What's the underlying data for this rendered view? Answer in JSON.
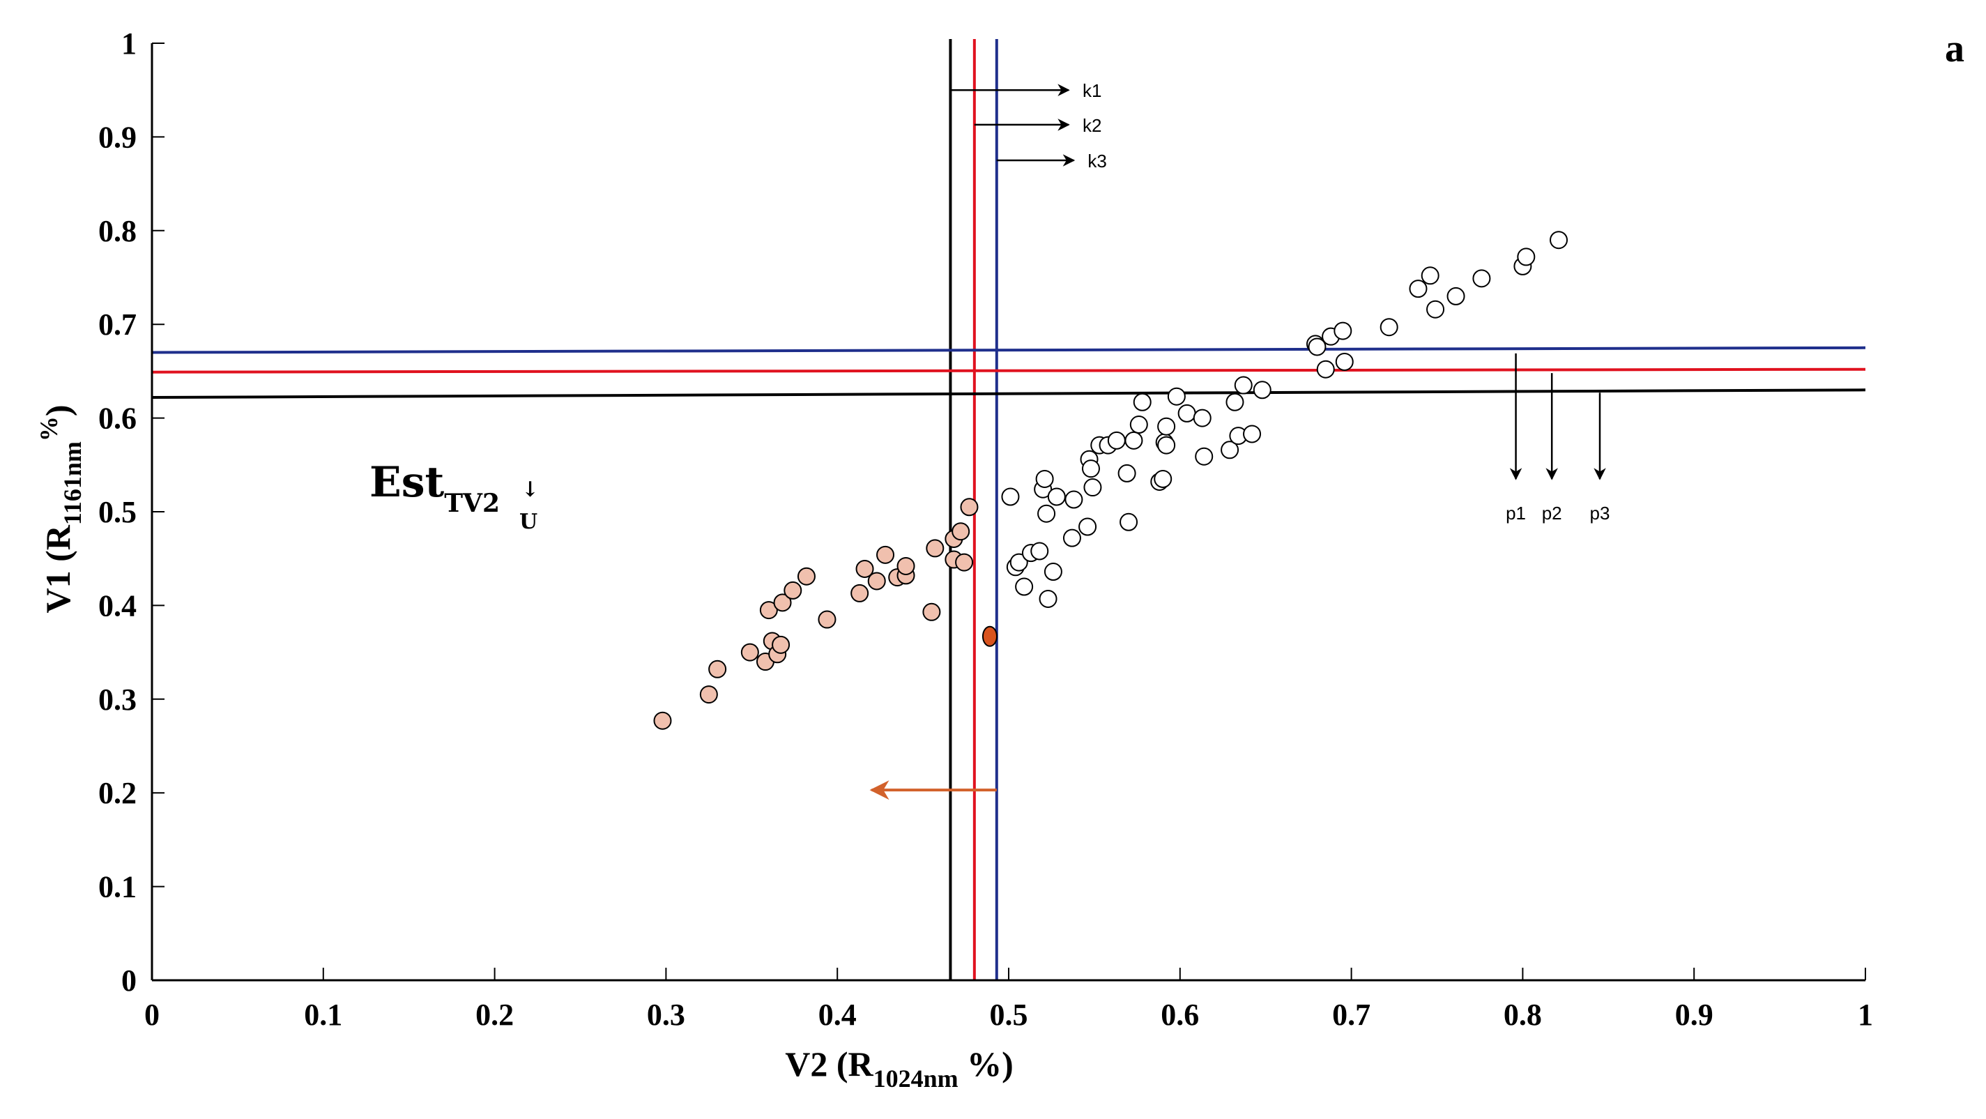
{
  "chart_data": {
    "type": "scatter",
    "panel_label": "a",
    "xlabel": "V2 (R",
    "xlabel_sub": "1024nm",
    "xlabel_tail": " %)",
    "ylabel": "V1 (R",
    "ylabel_sub": "1161nm",
    "ylabel_sup": "%",
    "ylabel_tail": ")",
    "xlim": [
      0,
      1
    ],
    "ylim": [
      0,
      1
    ],
    "x_ticks": [
      "0",
      "0.1",
      "0.2",
      "0.3",
      "0.4",
      "0.5",
      "0.6",
      "0.7",
      "0.8",
      "0.9",
      "1"
    ],
    "y_ticks": [
      "0",
      "0.1",
      "0.2",
      "0.3",
      "0.4",
      "0.5",
      "0.6",
      "0.7",
      "0.8",
      "0.9",
      "1"
    ],
    "annotation": {
      "main": "Est",
      "sub": "TV2",
      "subsub": "U",
      "arrow_glyph": "↓"
    },
    "colors": {
      "axis": "#000000",
      "black_line": "#000000",
      "red_line": "#e0121f",
      "blue_line": "#1f2f8c",
      "orange_arrow": "#d2612b",
      "filled_point": "#f0c0ae",
      "highlight_point": "#d9541f",
      "open_point": "#ffffff"
    },
    "vertical_thresholds": [
      {
        "name": "k1",
        "x": 0.466,
        "color": "black"
      },
      {
        "name": "k2",
        "x": 0.48,
        "color": "red"
      },
      {
        "name": "k3",
        "x": 0.493,
        "color": "blue"
      }
    ],
    "horizontal_thresholds": [
      {
        "name": "p1",
        "y_start": 0.622,
        "y_end": 0.63,
        "color": "black"
      },
      {
        "name": "p2",
        "y_start": 0.649,
        "y_end": 0.652,
        "color": "red"
      },
      {
        "name": "p3",
        "y_start": 0.67,
        "y_end": 0.675,
        "color": "blue"
      }
    ],
    "k_arrows": [
      {
        "label": "k1",
        "y": 0.95,
        "x_end": 0.535
      },
      {
        "label": "k2",
        "y": 0.913,
        "x_end": 0.535
      },
      {
        "label": "k3",
        "y": 0.875,
        "x_end": 0.538
      }
    ],
    "p_arrows": [
      {
        "label": "p1",
        "x": 0.796,
        "y_start": 0.669,
        "y_end": 0.535
      },
      {
        "label": "p2",
        "x": 0.817,
        "y_start": 0.648,
        "y_end": 0.535
      },
      {
        "label": "p3",
        "x": 0.845,
        "y_start": 0.627,
        "y_end": 0.535
      }
    ],
    "orange_arrow": {
      "y": 0.203,
      "x_start": 0.493,
      "x_end": 0.42
    },
    "series": [
      {
        "name": "filled",
        "points": [
          [
            0.298,
            0.277
          ],
          [
            0.325,
            0.305
          ],
          [
            0.33,
            0.332
          ],
          [
            0.349,
            0.35
          ],
          [
            0.358,
            0.34
          ],
          [
            0.36,
            0.395
          ],
          [
            0.362,
            0.362
          ],
          [
            0.365,
            0.348
          ],
          [
            0.367,
            0.358
          ],
          [
            0.368,
            0.403
          ],
          [
            0.374,
            0.416
          ],
          [
            0.382,
            0.431
          ],
          [
            0.394,
            0.385
          ],
          [
            0.413,
            0.413
          ],
          [
            0.416,
            0.439
          ],
          [
            0.423,
            0.426
          ],
          [
            0.428,
            0.454
          ],
          [
            0.435,
            0.43
          ],
          [
            0.44,
            0.432
          ],
          [
            0.44,
            0.442
          ],
          [
            0.455,
            0.393
          ],
          [
            0.457,
            0.461
          ],
          [
            0.468,
            0.471
          ],
          [
            0.468,
            0.449
          ],
          [
            0.472,
            0.479
          ],
          [
            0.474,
            0.446
          ],
          [
            0.477,
            0.505
          ]
        ]
      },
      {
        "name": "highlight",
        "points": [
          [
            0.489,
            0.367
          ]
        ]
      },
      {
        "name": "open",
        "points": [
          [
            0.501,
            0.516
          ],
          [
            0.504,
            0.441
          ],
          [
            0.506,
            0.446
          ],
          [
            0.509,
            0.42
          ],
          [
            0.513,
            0.456
          ],
          [
            0.518,
            0.458
          ],
          [
            0.52,
            0.524
          ],
          [
            0.521,
            0.535
          ],
          [
            0.522,
            0.498
          ],
          [
            0.523,
            0.407
          ],
          [
            0.526,
            0.436
          ],
          [
            0.528,
            0.516
          ],
          [
            0.537,
            0.472
          ],
          [
            0.538,
            0.513
          ],
          [
            0.546,
            0.484
          ],
          [
            0.547,
            0.556
          ],
          [
            0.548,
            0.546
          ],
          [
            0.549,
            0.526
          ],
          [
            0.553,
            0.571
          ],
          [
            0.558,
            0.571
          ],
          [
            0.563,
            0.576
          ],
          [
            0.569,
            0.541
          ],
          [
            0.57,
            0.489
          ],
          [
            0.573,
            0.576
          ],
          [
            0.576,
            0.593
          ],
          [
            0.578,
            0.617
          ],
          [
            0.588,
            0.532
          ],
          [
            0.59,
            0.535
          ],
          [
            0.591,
            0.574
          ],
          [
            0.592,
            0.591
          ],
          [
            0.592,
            0.571
          ],
          [
            0.598,
            0.623
          ],
          [
            0.604,
            0.605
          ],
          [
            0.613,
            0.6
          ],
          [
            0.614,
            0.559
          ],
          [
            0.629,
            0.566
          ],
          [
            0.632,
            0.617
          ],
          [
            0.634,
            0.581
          ],
          [
            0.637,
            0.635
          ],
          [
            0.642,
            0.583
          ],
          [
            0.648,
            0.63
          ],
          [
            0.679,
            0.679
          ],
          [
            0.68,
            0.676
          ],
          [
            0.685,
            0.652
          ],
          [
            0.688,
            0.687
          ],
          [
            0.695,
            0.693
          ],
          [
            0.696,
            0.66
          ],
          [
            0.722,
            0.697
          ],
          [
            0.739,
            0.738
          ],
          [
            0.746,
            0.752
          ],
          [
            0.749,
            0.716
          ],
          [
            0.761,
            0.73
          ],
          [
            0.776,
            0.749
          ],
          [
            0.8,
            0.762
          ],
          [
            0.802,
            0.772
          ],
          [
            0.821,
            0.79
          ]
        ]
      }
    ]
  }
}
